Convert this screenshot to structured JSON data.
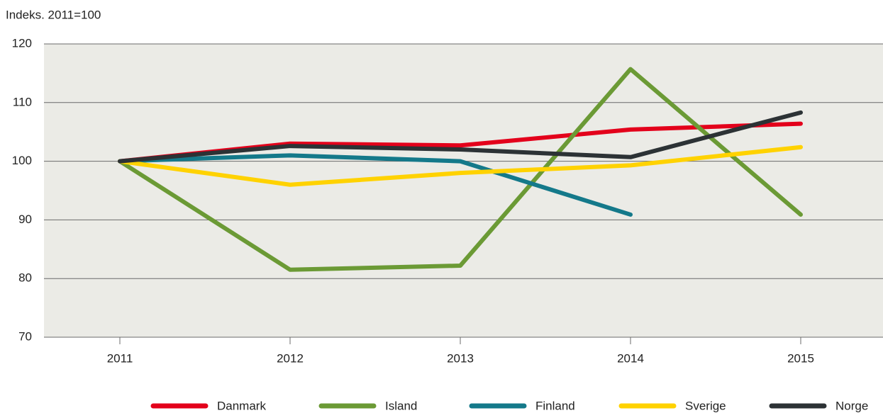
{
  "chart_data": {
    "type": "line",
    "y_axis_label": "Indeks. 2011=100",
    "categories": [
      "2011",
      "2012",
      "2013",
      "2014",
      "2015"
    ],
    "series": [
      {
        "name": "Danmark",
        "color": "#e3001b",
        "values": [
          100,
          103.0,
          102.7,
          105.4,
          106.4
        ]
      },
      {
        "name": "Island",
        "color": "#6b9a35",
        "values": [
          100,
          81.5,
          82.2,
          115.7,
          90.9
        ]
      },
      {
        "name": "Finland",
        "color": "#14798a",
        "values": [
          100,
          101.0,
          100,
          90.9,
          null
        ]
      },
      {
        "name": "Sverige",
        "color": "#ffd200",
        "values": [
          100,
          96.0,
          98.0,
          99.3,
          102.4
        ]
      },
      {
        "name": "Norge",
        "color": "#2c3235",
        "values": [
          100,
          102.6,
          102.0,
          100.7,
          108.3
        ]
      }
    ],
    "ylim": [
      70,
      120
    ],
    "yticks": [
      70,
      80,
      90,
      100,
      110,
      120
    ],
    "grid": true,
    "legend": "bottom"
  }
}
